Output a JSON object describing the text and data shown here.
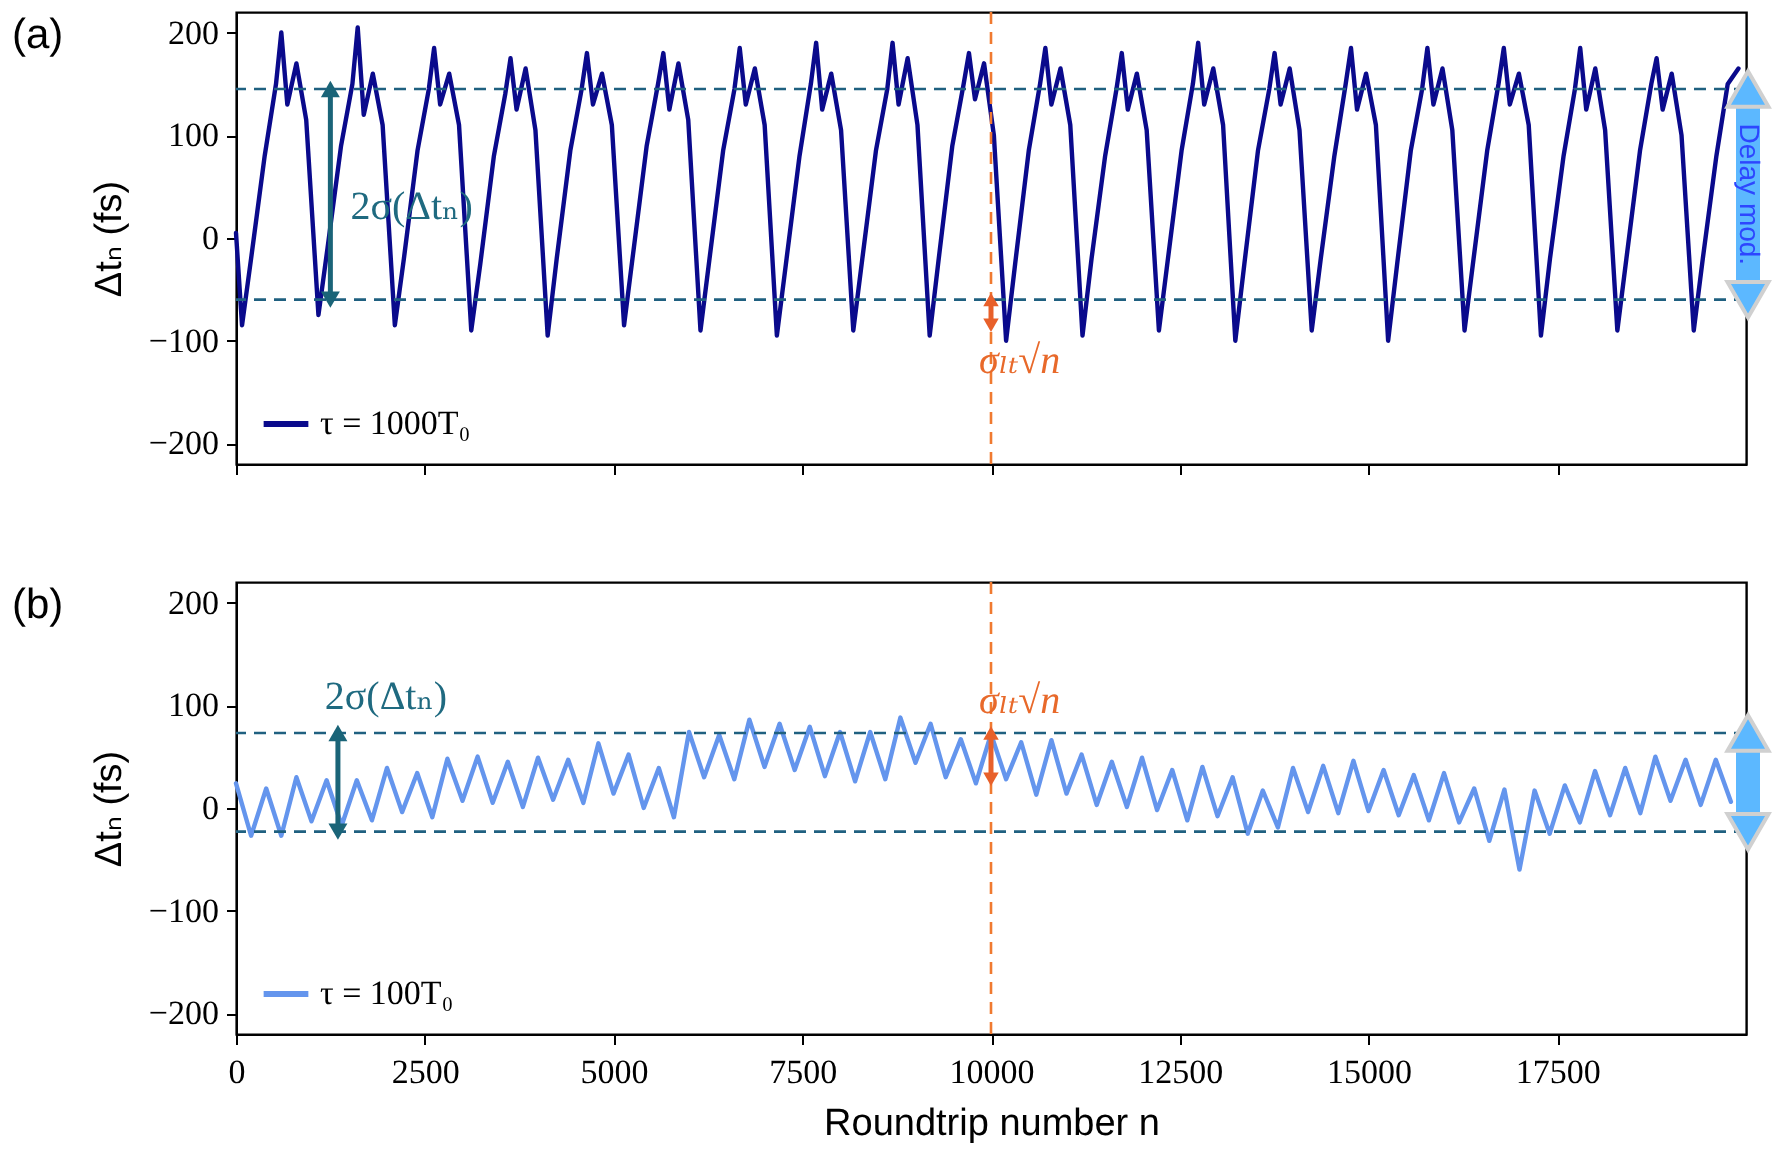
{
  "chart_data": [
    {
      "type": "line",
      "ylabel": "Δtₙ (fs)",
      "xlim": [
        0,
        20000
      ],
      "xticks": [
        0,
        2500,
        5000,
        7500,
        10000,
        12500,
        15000,
        17500
      ],
      "ylim": [
        -220,
        220
      ],
      "yticks": [
        -200,
        -100,
        0,
        100,
        200
      ],
      "tick_labels": "y",
      "legend": "bottom left",
      "series": [
        {
          "name": "τ = 1000T₀",
          "color": "#0a0a8c",
          "x": [
            0,
            80,
            200,
            380,
            530,
            600,
            680,
            800,
            930,
            1092,
            1212,
            1392,
            1542,
            1612,
            1692,
            1812,
            1942,
            2104,
            2224,
            2404,
            2554,
            2624,
            2704,
            2824,
            2954,
            3116,
            3236,
            3416,
            3566,
            3636,
            3716,
            3836,
            3966,
            4128,
            4248,
            4428,
            4578,
            4648,
            4728,
            4848,
            4978,
            5140,
            5260,
            5440,
            5590,
            5660,
            5740,
            5860,
            5990,
            6152,
            6272,
            6452,
            6602,
            6672,
            6752,
            6872,
            7002,
            7164,
            7284,
            7464,
            7614,
            7684,
            7764,
            7884,
            8014,
            8176,
            8296,
            8476,
            8626,
            8696,
            8776,
            8896,
            9026,
            9188,
            9308,
            9488,
            9638,
            9708,
            9788,
            9908,
            10038,
            10200,
            10320,
            10500,
            10650,
            10720,
            10800,
            10920,
            11050,
            11212,
            11332,
            11512,
            11662,
            11732,
            11812,
            11932,
            12062,
            12224,
            12344,
            12524,
            12674,
            12744,
            12824,
            12944,
            13074,
            13236,
            13356,
            13536,
            13686,
            13756,
            13836,
            13956,
            14086,
            14248,
            14368,
            14548,
            14698,
            14768,
            14848,
            14968,
            15098,
            15260,
            15380,
            15560,
            15710,
            15780,
            15860,
            15980,
            16110,
            16272,
            16392,
            16572,
            16722,
            16792,
            16872,
            16992,
            17122,
            17284,
            17404,
            17584,
            17734,
            17804,
            17884,
            18004,
            18134,
            18296,
            18416,
            18596,
            18746,
            18816,
            18896,
            19016,
            19146,
            19308,
            19428,
            19608,
            19758,
            19900
          ],
          "values": [
            5,
            -85,
            -20,
            80,
            150,
            200,
            130,
            170,
            115,
            -75,
            -10,
            90,
            150,
            205,
            120,
            160,
            110,
            -85,
            -20,
            85,
            145,
            185,
            130,
            160,
            110,
            -90,
            -25,
            80,
            140,
            175,
            125,
            165,
            105,
            -95,
            -20,
            85,
            145,
            180,
            130,
            160,
            110,
            -85,
            -15,
            90,
            150,
            180,
            125,
            170,
            115,
            -90,
            -20,
            85,
            145,
            185,
            130,
            165,
            110,
            -95,
            -25,
            80,
            150,
            190,
            125,
            160,
            105,
            -90,
            -20,
            85,
            145,
            190,
            130,
            175,
            110,
            -95,
            -20,
            90,
            150,
            180,
            135,
            170,
            100,
            -100,
            -25,
            85,
            150,
            185,
            130,
            165,
            110,
            -95,
            -20,
            80,
            145,
            180,
            125,
            160,
            105,
            -90,
            -20,
            85,
            150,
            190,
            130,
            165,
            110,
            -100,
            -25,
            85,
            145,
            180,
            130,
            165,
            105,
            -90,
            -20,
            80,
            150,
            185,
            125,
            160,
            110,
            -100,
            -25,
            85,
            145,
            185,
            130,
            165,
            105,
            -90,
            -20,
            85,
            150,
            185,
            130,
            160,
            110,
            -95,
            -20,
            80,
            145,
            185,
            125,
            165,
            105,
            -90,
            -20,
            85,
            150,
            175,
            125,
            160,
            100,
            -90,
            -20,
            80,
            150,
            165
          ]
        }
      ],
      "ref_lines": [
        {
          "axis": "y",
          "value": 145,
          "color": "#1f6080",
          "line_style": "dashed"
        },
        {
          "axis": "y",
          "value": -60,
          "color": "#1f6080",
          "line_style": "dashed"
        },
        {
          "axis": "x",
          "value": 10000,
          "color": "#f07a30",
          "line_style": "dashed"
        }
      ],
      "annotations": [
        "(a)",
        {
          "text": "2σ(Δtₙ)",
          "x": 1250,
          "y": 30
        },
        {
          "text": "σₗₜ√n",
          "x": 10000,
          "y": -85
        },
        "Delay mod."
      ]
    },
    {
      "type": "line",
      "xlabel": "Roundtrip number n",
      "ylabel": "Δtₙ (fs)",
      "xlim": [
        0,
        20000
      ],
      "xticks": [
        0,
        2500,
        5000,
        7500,
        10000,
        12500,
        15000,
        17500
      ],
      "ylim": [
        -220,
        220
      ],
      "yticks": [
        -200,
        -100,
        0,
        100,
        200
      ],
      "legend": "bottom left",
      "series": [
        {
          "name": "τ = 100T₀",
          "color": "#6495ed",
          "x": [
            0,
            200,
            400,
            600,
            800,
            1000,
            1200,
            1400,
            1600,
            1800,
            2000,
            2200,
            2400,
            2600,
            2800,
            3000,
            3200,
            3400,
            3600,
            3800,
            4000,
            4200,
            4400,
            4600,
            4800,
            5000,
            5200,
            5400,
            5600,
            5800,
            6000,
            6200,
            6400,
            6600,
            6800,
            7000,
            7200,
            7400,
            7600,
            7800,
            8000,
            8200,
            8400,
            8600,
            8800,
            9000,
            9200,
            9400,
            9600,
            9800,
            10000,
            10200,
            10400,
            10600,
            10800,
            11000,
            11200,
            11400,
            11600,
            11800,
            12000,
            12200,
            12400,
            12600,
            12800,
            13000,
            13200,
            13400,
            13600,
            13800,
            14000,
            14200,
            14400,
            14600,
            14800,
            15000,
            15200,
            15400,
            15600,
            15800,
            16000,
            16200,
            16400,
            16600,
            16800,
            17000,
            17200,
            17400,
            17600,
            17800,
            18000,
            18200,
            18400,
            18600,
            18800,
            19000,
            19200,
            19400,
            19600,
            19800
          ],
          "values": [
            24,
            -27,
            19,
            -27,
            30,
            -13,
            27,
            -17,
            27,
            -12,
            39,
            -4,
            34,
            -9,
            48,
            7,
            50,
            5,
            45,
            1,
            49,
            8,
            47,
            5,
            63,
            14,
            52,
            0,
            39,
            -9,
            74,
            30,
            71,
            28,
            86,
            40,
            82,
            37,
            79,
            31,
            74,
            26,
            74,
            28,
            88,
            44,
            82,
            30,
            67,
            24,
            72,
            28,
            64,
            13,
            66,
            14,
            52,
            3,
            45,
            1,
            49,
            -2,
            37,
            -12,
            40,
            -8,
            30,
            -25,
            17,
            -19,
            39,
            -4,
            41,
            -5,
            46,
            -3,
            37,
            -7,
            32,
            -12,
            34,
            -14,
            19,
            -32,
            18,
            -60,
            17,
            -25,
            22,
            -14,
            36,
            -7,
            39,
            -5,
            50,
            7,
            47,
            3,
            47,
            6
          ]
        }
      ],
      "ref_lines": [
        {
          "axis": "y",
          "value": 73,
          "color": "#1f6080",
          "line_style": "dashed"
        },
        {
          "axis": "y",
          "value": -23,
          "color": "#1f6080",
          "line_style": "dashed"
        },
        {
          "axis": "x",
          "value": 10000,
          "color": "#f07a30",
          "line_style": "dashed"
        }
      ],
      "annotations": [
        "(b)",
        {
          "text": "2σ(Δtₙ)",
          "x": 1350,
          "y": 73
        },
        {
          "text": "σₗₜ√n",
          "x": 10000,
          "y": 28
        }
      ]
    }
  ]
}
